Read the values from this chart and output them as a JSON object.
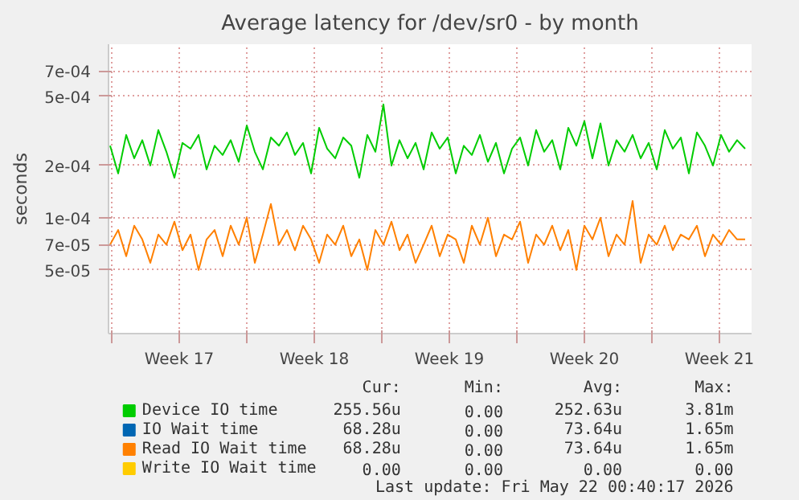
{
  "chart_data": {
    "type": "line",
    "title": "Average latency for /dev/sr0 - by month",
    "ylabel": "seconds",
    "log": "y",
    "grid": true,
    "legend": "bottom",
    "ylim": [
      2.15e-05,
      0.001
    ],
    "yticks": [
      {
        "value": 5e-05,
        "label": "5e-05"
      },
      {
        "value": 7e-05,
        "label": "7e-05"
      },
      {
        "value": 0.0001,
        "label": "1e-04"
      },
      {
        "value": 0.0002,
        "label": "2e-04"
      },
      {
        "value": 0.0005,
        "label": "5e-04"
      },
      {
        "value": 0.0007,
        "label": "7e-04"
      }
    ],
    "xlim": [
      "2026-04-19T20:00",
      "2026-05-23T04:00"
    ],
    "xticks": [
      {
        "value": "2026-04-20T00:00",
        "label": null
      },
      {
        "value": "2026-04-23T12:00",
        "label": "Week 17"
      },
      {
        "value": "2026-04-27T00:00",
        "label": null
      },
      {
        "value": "2026-04-30T12:00",
        "label": "Week 18"
      },
      {
        "value": "2026-05-04T00:00",
        "label": null
      },
      {
        "value": "2026-05-07T12:00",
        "label": "Week 19"
      },
      {
        "value": "2026-05-11T00:00",
        "label": null
      },
      {
        "value": "2026-05-14T12:00",
        "label": "Week 20"
      },
      {
        "value": "2026-05-18T00:00",
        "label": null
      },
      {
        "value": "2026-05-21T12:00",
        "label": "Week 21"
      }
    ],
    "x": [
      "2026-04-19T22:00",
      "2026-04-20T08:00",
      "2026-04-20T18:00",
      "2026-04-21T04:00",
      "2026-04-21T14:00",
      "2026-04-22T00:00",
      "2026-04-22T10:00",
      "2026-04-22T20:00",
      "2026-04-23T06:00",
      "2026-04-23T16:00",
      "2026-04-24T02:00",
      "2026-04-24T12:00",
      "2026-04-24T22:00",
      "2026-04-25T08:00",
      "2026-04-25T18:00",
      "2026-04-26T04:00",
      "2026-04-26T14:00",
      "2026-04-27T00:00",
      "2026-04-27T10:00",
      "2026-04-27T20:00",
      "2026-04-28T06:00",
      "2026-04-28T16:00",
      "2026-04-29T02:00",
      "2026-04-29T12:00",
      "2026-04-29T22:00",
      "2026-04-30T08:00",
      "2026-04-30T18:00",
      "2026-05-01T04:00",
      "2026-05-01T14:00",
      "2026-05-02T00:00",
      "2026-05-02T10:00",
      "2026-05-02T20:00",
      "2026-05-03T06:00",
      "2026-05-03T16:00",
      "2026-05-04T02:00",
      "2026-05-04T12:00",
      "2026-05-04T22:00",
      "2026-05-05T08:00",
      "2026-05-05T18:00",
      "2026-05-06T04:00",
      "2026-05-06T14:00",
      "2026-05-07T00:00",
      "2026-05-07T10:00",
      "2026-05-07T20:00",
      "2026-05-08T06:00",
      "2026-05-08T16:00",
      "2026-05-09T02:00",
      "2026-05-09T12:00",
      "2026-05-09T22:00",
      "2026-05-10T08:00",
      "2026-05-10T18:00",
      "2026-05-11T04:00",
      "2026-05-11T14:00",
      "2026-05-12T00:00",
      "2026-05-12T10:00",
      "2026-05-12T20:00",
      "2026-05-13T06:00",
      "2026-05-13T16:00",
      "2026-05-14T02:00",
      "2026-05-14T12:00",
      "2026-05-14T22:00",
      "2026-05-15T08:00",
      "2026-05-15T18:00",
      "2026-05-16T04:00",
      "2026-05-16T14:00",
      "2026-05-17T00:00",
      "2026-05-17T10:00",
      "2026-05-17T20:00",
      "2026-05-18T06:00",
      "2026-05-18T16:00",
      "2026-05-19T02:00",
      "2026-05-19T12:00",
      "2026-05-19T22:00",
      "2026-05-20T08:00",
      "2026-05-20T18:00",
      "2026-05-21T04:00",
      "2026-05-21T14:00",
      "2026-05-22T00:00",
      "2026-05-22T10:00",
      "2026-05-22T20:00"
    ],
    "series": [
      {
        "name": "Device IO time",
        "color": "#00cc00",
        "values": [
          0.00026,
          0.00018,
          0.0003,
          0.00022,
          0.00028,
          0.0002,
          0.00032,
          0.00024,
          0.00017,
          0.00027,
          0.00025,
          0.0003,
          0.00019,
          0.00026,
          0.00023,
          0.00028,
          0.00021,
          0.00034,
          0.00024,
          0.00019,
          0.00029,
          0.00026,
          0.00031,
          0.00023,
          0.00027,
          0.00018,
          0.00033,
          0.00025,
          0.00022,
          0.00029,
          0.00026,
          0.00017,
          0.0003,
          0.00024,
          0.00045,
          0.0002,
          0.00028,
          0.00022,
          0.00027,
          0.00019,
          0.00031,
          0.00025,
          0.00029,
          0.00018,
          0.00026,
          0.00023,
          0.0003,
          0.00021,
          0.00027,
          0.00018,
          0.00025,
          0.00029,
          0.0002,
          0.00032,
          0.00024,
          0.00028,
          0.00019,
          0.00033,
          0.00026,
          0.00036,
          0.00022,
          0.00035,
          0.0002,
          0.00028,
          0.00024,
          0.0003,
          0.00022,
          0.00027,
          0.00019,
          0.00032,
          0.00025,
          0.00029,
          0.00018,
          0.00031,
          0.00026,
          0.0002,
          0.0003,
          0.00024,
          0.00028,
          0.00025
        ]
      },
      {
        "name": "IO Wait time",
        "color": "#0066b3",
        "values": [
          null,
          null,
          null,
          null,
          null,
          null,
          null,
          null,
          null,
          null,
          null,
          null,
          null,
          null,
          null,
          null,
          null,
          null,
          null,
          null,
          null,
          null,
          null,
          null,
          null,
          null,
          null,
          null,
          null,
          null,
          null,
          null,
          null,
          null,
          null,
          null,
          null,
          null,
          null,
          null,
          null,
          null,
          null,
          null,
          null,
          null,
          null,
          null,
          null,
          null,
          null,
          null,
          null,
          null,
          null,
          null,
          null,
          null,
          null,
          null,
          null,
          null,
          null,
          null,
          null,
          null,
          null,
          null,
          null,
          null,
          null,
          null,
          null,
          null,
          null,
          null,
          null,
          null,
          null,
          null
        ]
      },
      {
        "name": "Read IO Wait time",
        "color": "#ff8000",
        "values": [
          7e-05,
          8.5e-05,
          6e-05,
          9e-05,
          7.5e-05,
          5.5e-05,
          8e-05,
          7e-05,
          9.5e-05,
          6.5e-05,
          8e-05,
          5e-05,
          7.5e-05,
          8.5e-05,
          6e-05,
          9e-05,
          7e-05,
          0.0001,
          5.5e-05,
          8e-05,
          0.00012,
          7e-05,
          8.5e-05,
          6.5e-05,
          9e-05,
          7.5e-05,
          5.5e-05,
          8e-05,
          7e-05,
          9e-05,
          6e-05,
          7.5e-05,
          5e-05,
          8.5e-05,
          7e-05,
          9.5e-05,
          6.5e-05,
          8e-05,
          5.5e-05,
          7e-05,
          9e-05,
          6e-05,
          8e-05,
          7.5e-05,
          5.5e-05,
          9e-05,
          7e-05,
          0.0001,
          6e-05,
          8e-05,
          7.5e-05,
          9.5e-05,
          5.5e-05,
          8e-05,
          7e-05,
          9e-05,
          6.5e-05,
          8.5e-05,
          5e-05,
          9e-05,
          7.5e-05,
          0.0001,
          6e-05,
          8e-05,
          7e-05,
          0.000125,
          5.5e-05,
          8e-05,
          7e-05,
          9e-05,
          6.5e-05,
          8e-05,
          7.5e-05,
          9e-05,
          6e-05,
          8e-05,
          7e-05,
          8.5e-05,
          7.5e-05,
          7.5e-05
        ]
      },
      {
        "name": "Write IO Wait time",
        "color": "#ffcc00",
        "values": [
          null,
          null,
          null,
          null,
          null,
          null,
          null,
          null,
          null,
          null,
          null,
          null,
          null,
          null,
          null,
          null,
          null,
          null,
          null,
          null,
          null,
          null,
          null,
          null,
          null,
          null,
          null,
          null,
          null,
          null,
          null,
          null,
          null,
          null,
          null,
          null,
          null,
          null,
          null,
          null,
          null,
          null,
          null,
          null,
          null,
          null,
          null,
          null,
          null,
          null,
          null,
          null,
          null,
          null,
          null,
          null,
          null,
          null,
          null,
          null,
          null,
          null,
          null,
          null,
          null,
          null,
          null,
          null,
          null,
          null,
          null,
          null,
          null,
          null,
          null,
          null,
          null,
          null,
          null,
          null
        ]
      }
    ],
    "annotations": [
      "Cur:",
      "Min:",
      "Avg:",
      "Max:",
      "255.56u",
      "0.00",
      "252.63u",
      "3.81m",
      "68.28u",
      "0.00",
      "73.64u",
      "1.65m",
      "68.28u",
      "0.00",
      "73.64u",
      "1.65m",
      "0.00",
      "0.00",
      "0.00",
      "0.00",
      "Last update: Fri May 22 00:40:17 2026"
    ]
  }
}
